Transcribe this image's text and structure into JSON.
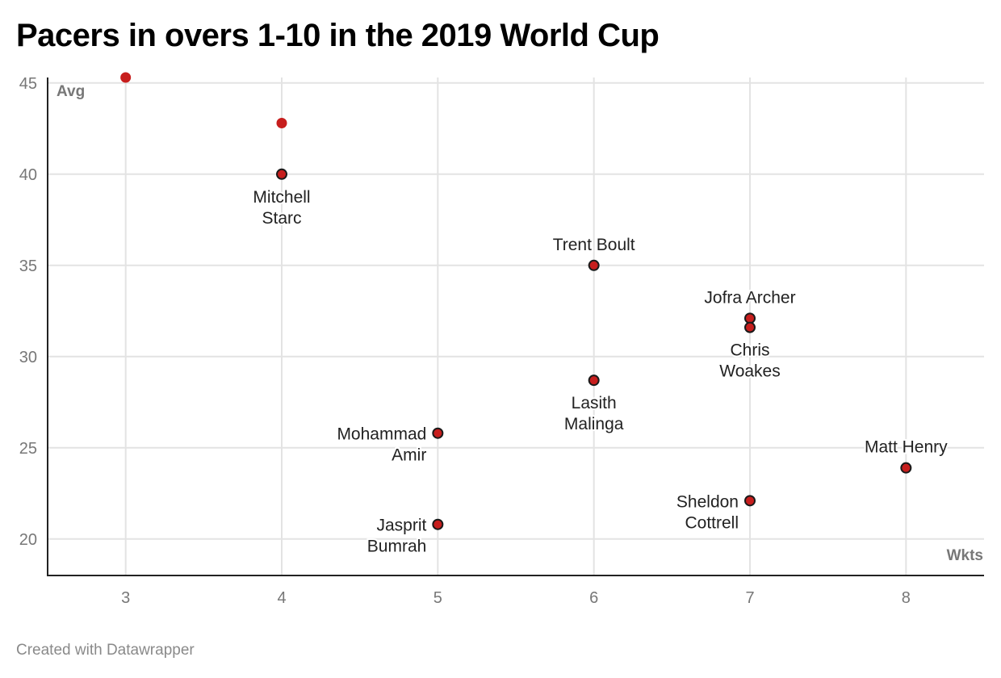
{
  "title": "Pacers in overs 1-10 in the 2019 World Cup",
  "footer": "Created with Datawrapper",
  "chart_data": {
    "type": "scatter",
    "title": "Pacers in overs 1-10 in the 2019 World Cup",
    "xlabel": "Wkts",
    "ylabel": "Avg",
    "xlim": [
      2.5,
      8.5
    ],
    "ylim": [
      18,
      45.3
    ],
    "xticks": [
      "3",
      "4",
      "5",
      "6",
      "7",
      "8"
    ],
    "yticks": [
      "20",
      "25",
      "30",
      "35",
      "40",
      "45"
    ],
    "grid": true,
    "color": "#c71e1d",
    "points": [
      {
        "name": "",
        "x": 3,
        "y": 45.3,
        "highlighted": false,
        "label_position": "none"
      },
      {
        "name": "",
        "x": 4,
        "y": 42.8,
        "highlighted": false,
        "label_position": "none"
      },
      {
        "name": "Mitchell Starc",
        "lines": [
          "Mitchell",
          "Starc"
        ],
        "x": 4,
        "y": 40.0,
        "highlighted": true,
        "label_position": "below"
      },
      {
        "name": "Trent Boult",
        "lines": [
          "Trent Boult"
        ],
        "x": 6,
        "y": 35.0,
        "highlighted": true,
        "label_position": "above"
      },
      {
        "name": "Jofra Archer",
        "lines": [
          "Jofra Archer"
        ],
        "x": 7,
        "y": 32.1,
        "highlighted": true,
        "label_position": "above"
      },
      {
        "name": "Chris Woakes",
        "lines": [
          "Chris",
          "Woakes"
        ],
        "x": 7,
        "y": 31.6,
        "highlighted": true,
        "label_position": "below"
      },
      {
        "name": "Lasith Malinga",
        "lines": [
          "Lasith",
          "Malinga"
        ],
        "x": 6,
        "y": 28.7,
        "highlighted": true,
        "label_position": "below"
      },
      {
        "name": "Mohammad Amir",
        "lines": [
          "Mohammad",
          "Amir"
        ],
        "x": 5,
        "y": 25.8,
        "highlighted": true,
        "label_position": "left"
      },
      {
        "name": "Matt Henry",
        "lines": [
          "Matt Henry"
        ],
        "x": 8,
        "y": 23.9,
        "highlighted": true,
        "label_position": "above"
      },
      {
        "name": "Sheldon Cottrell",
        "lines": [
          "Sheldon",
          "Cottrell"
        ],
        "x": 7,
        "y": 22.1,
        "highlighted": true,
        "label_position": "left"
      },
      {
        "name": "Jasprit Bumrah",
        "lines": [
          "Jasprit",
          "Bumrah"
        ],
        "x": 5,
        "y": 20.8,
        "highlighted": true,
        "label_position": "left"
      }
    ]
  }
}
